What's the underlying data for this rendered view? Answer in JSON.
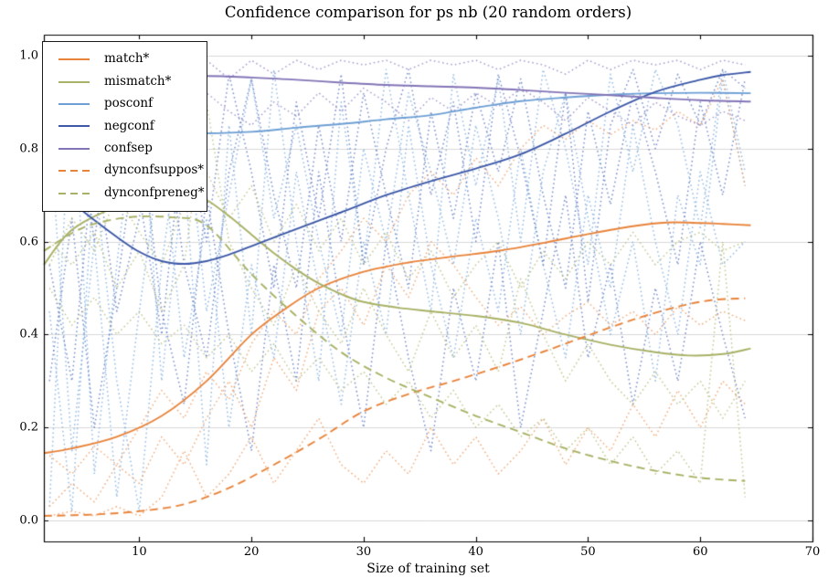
{
  "chart_data": {
    "type": "line",
    "title": "Confidence comparison for ps nb (20 random orders)",
    "xlabel": "Size of training set",
    "ylabel": "",
    "xlim": [
      1.5,
      70
    ],
    "ylim": [
      -0.045,
      1.045
    ],
    "xticks": [
      10,
      20,
      30,
      40,
      50,
      60,
      70
    ],
    "xticklabels": [
      "10",
      "20",
      "30",
      "40",
      "50",
      "60",
      "70"
    ],
    "yticks": [
      0.0,
      0.2,
      0.4,
      0.6,
      0.8,
      1.0
    ],
    "yticklabels": [
      "0.0",
      "0.2",
      "0.4",
      "0.6",
      "0.8",
      "1.0"
    ],
    "grid": "horizontal-only",
    "legend_position": "upper-left",
    "colors": {
      "orange": "#e8833a",
      "olive": "#a8b165",
      "lightblue": "#6d9fd4",
      "darkblue": "#3c58a7",
      "purple": "#8374b6",
      "run_lightblue": "#7cabdc",
      "run_darkblue": "#5b74bd",
      "run_orange": "#ec9a60",
      "run_olive": "#b3bc79",
      "run_purple": "#9385c2",
      "grid": "#d9d9d9",
      "spine": "#000000"
    },
    "series": [
      {
        "label": "match*",
        "color": "orange",
        "style": "solid",
        "points": [
          [
            1.5,
            0.145
          ],
          [
            4,
            0.155
          ],
          [
            8,
            0.18
          ],
          [
            12,
            0.225
          ],
          [
            16,
            0.3
          ],
          [
            20,
            0.4
          ],
          [
            23,
            0.455
          ],
          [
            26,
            0.5
          ],
          [
            30,
            0.535
          ],
          [
            34,
            0.555
          ],
          [
            38,
            0.568
          ],
          [
            42,
            0.58
          ],
          [
            46,
            0.597
          ],
          [
            50,
            0.616
          ],
          [
            54,
            0.633
          ],
          [
            57,
            0.641
          ],
          [
            60,
            0.64
          ],
          [
            62,
            0.638
          ],
          [
            64.5,
            0.635
          ]
        ]
      },
      {
        "label": "mismatch*",
        "color": "olive",
        "style": "solid",
        "points": [
          [
            1.5,
            0.55
          ],
          [
            4,
            0.625
          ],
          [
            8,
            0.675
          ],
          [
            12,
            0.7
          ],
          [
            15,
            0.7
          ],
          [
            16,
            0.69
          ],
          [
            18,
            0.655
          ],
          [
            20,
            0.615
          ],
          [
            22,
            0.575
          ],
          [
            24,
            0.54
          ],
          [
            26,
            0.51
          ],
          [
            28,
            0.487
          ],
          [
            30,
            0.47
          ],
          [
            33,
            0.458
          ],
          [
            36,
            0.45
          ],
          [
            40,
            0.44
          ],
          [
            44,
            0.425
          ],
          [
            48,
            0.4
          ],
          [
            52,
            0.378
          ],
          [
            56,
            0.362
          ],
          [
            59,
            0.355
          ],
          [
            62,
            0.358
          ],
          [
            64.5,
            0.37
          ]
        ]
      },
      {
        "label": "posconf",
        "color": "lightblue",
        "style": "solid",
        "points": [
          [
            1.5,
            0.843
          ],
          [
            4,
            0.838
          ],
          [
            8,
            0.836
          ],
          [
            12,
            0.835
          ],
          [
            16,
            0.833
          ],
          [
            20,
            0.836
          ],
          [
            24,
            0.845
          ],
          [
            28,
            0.853
          ],
          [
            32,
            0.863
          ],
          [
            36,
            0.872
          ],
          [
            40,
            0.888
          ],
          [
            44,
            0.902
          ],
          [
            48,
            0.91
          ],
          [
            52,
            0.916
          ],
          [
            56,
            0.919
          ],
          [
            60,
            0.92
          ],
          [
            64.5,
            0.919
          ]
        ]
      },
      {
        "label": "negconf",
        "color": "darkblue",
        "style": "solid",
        "points": [
          [
            1.5,
            0.75
          ],
          [
            3,
            0.705
          ],
          [
            5,
            0.665
          ],
          [
            8,
            0.61
          ],
          [
            10,
            0.578
          ],
          [
            12,
            0.558
          ],
          [
            14,
            0.552
          ],
          [
            16,
            0.558
          ],
          [
            18,
            0.572
          ],
          [
            20,
            0.59
          ],
          [
            24,
            0.627
          ],
          [
            28,
            0.663
          ],
          [
            32,
            0.7
          ],
          [
            36,
            0.73
          ],
          [
            40,
            0.757
          ],
          [
            44,
            0.788
          ],
          [
            48,
            0.832
          ],
          [
            52,
            0.88
          ],
          [
            56,
            0.922
          ],
          [
            60,
            0.948
          ],
          [
            62,
            0.958
          ],
          [
            64.5,
            0.965
          ]
        ]
      },
      {
        "label": "confsep",
        "color": "purple",
        "style": "solid",
        "points": [
          [
            1.5,
            0.845
          ],
          [
            4,
            0.9
          ],
          [
            8,
            0.94
          ],
          [
            12,
            0.953
          ],
          [
            16,
            0.956
          ],
          [
            20,
            0.953
          ],
          [
            24,
            0.948
          ],
          [
            28,
            0.942
          ],
          [
            32,
            0.937
          ],
          [
            36,
            0.934
          ],
          [
            40,
            0.931
          ],
          [
            44,
            0.926
          ],
          [
            48,
            0.92
          ],
          [
            52,
            0.915
          ],
          [
            56,
            0.909
          ],
          [
            60,
            0.904
          ],
          [
            64.5,
            0.901
          ]
        ]
      },
      {
        "label": "dynconfsuppos*",
        "color": "orange",
        "style": "dashed",
        "points": [
          [
            1.5,
            0.01
          ],
          [
            6,
            0.013
          ],
          [
            10,
            0.02
          ],
          [
            14,
            0.035
          ],
          [
            18,
            0.07
          ],
          [
            22,
            0.12
          ],
          [
            26,
            0.175
          ],
          [
            30,
            0.235
          ],
          [
            34,
            0.272
          ],
          [
            38,
            0.3
          ],
          [
            42,
            0.33
          ],
          [
            46,
            0.363
          ],
          [
            50,
            0.398
          ],
          [
            54,
            0.432
          ],
          [
            58,
            0.46
          ],
          [
            61,
            0.474
          ],
          [
            64,
            0.478
          ]
        ]
      },
      {
        "label": "dynconfpreneg*",
        "color": "olive",
        "style": "dashed",
        "points": [
          [
            1.5,
            0.58
          ],
          [
            5,
            0.63
          ],
          [
            9,
            0.652
          ],
          [
            13,
            0.652
          ],
          [
            16,
            0.635
          ],
          [
            20,
            0.53
          ],
          [
            24,
            0.44
          ],
          [
            28,
            0.362
          ],
          [
            32,
            0.307
          ],
          [
            36,
            0.265
          ],
          [
            40,
            0.225
          ],
          [
            44,
            0.19
          ],
          [
            48,
            0.155
          ],
          [
            52,
            0.128
          ],
          [
            56,
            0.107
          ],
          [
            60,
            0.092
          ],
          [
            64,
            0.085
          ]
        ]
      }
    ],
    "runs_note": "dotted lines = 20 individual random-order runs (approximated)",
    "runs_x_start": 2,
    "runs_x_step": 2,
    "runs": [
      {
        "color": "run_lightblue",
        "values": [
          0.03,
          0.97,
          0.1,
          0.55,
          0.96,
          0.3,
          0.75,
          0.12,
          0.85,
          0.4,
          0.97,
          0.6,
          0.3,
          0.9,
          0.55,
          0.97,
          0.7,
          0.45,
          0.96,
          0.72,
          0.95,
          0.6,
          0.97,
          0.8,
          0.55,
          0.96,
          0.75,
          0.97,
          0.85,
          0.63,
          0.97,
          0.75
        ]
      },
      {
        "color": "run_lightblue",
        "values": [
          0.85,
          0.15,
          0.6,
          0.05,
          0.45,
          0.8,
          0.35,
          0.65,
          0.2,
          0.55,
          0.35,
          0.75,
          0.5,
          0.25,
          0.6,
          0.4,
          0.85,
          0.55,
          0.35,
          0.65,
          0.45,
          0.8,
          0.55,
          0.35,
          0.7,
          0.5,
          0.85,
          0.6,
          0.4,
          0.75,
          0.55,
          0.6
        ]
      },
      {
        "color": "run_lightblue",
        "values": [
          0.45,
          0.02,
          0.75,
          0.3,
          0.02,
          0.55,
          0.9,
          0.45,
          0.7,
          0.95,
          0.65,
          0.85,
          0.6,
          0.4,
          0.8,
          0.6,
          0.92,
          0.75,
          0.55,
          0.85,
          0.65,
          0.4,
          0.75,
          0.92,
          0.65,
          0.4,
          0.6,
          0.3,
          0.7,
          0.55,
          0.95,
          0.72
        ]
      },
      {
        "color": "run_darkblue",
        "values": [
          0.75,
          0.95,
          0.6,
          0.97,
          0.7,
          0.4,
          0.85,
          0.6,
          0.96,
          0.75,
          0.5,
          0.9,
          0.65,
          0.96,
          0.55,
          0.8,
          0.97,
          0.7,
          0.9,
          0.6,
          0.96,
          0.78,
          0.55,
          0.92,
          0.47,
          0.85,
          0.97,
          0.8,
          0.96,
          0.85,
          0.97,
          0.93
        ]
      },
      {
        "color": "run_darkblue",
        "values": [
          0.3,
          0.65,
          0.2,
          0.5,
          0.85,
          0.45,
          0.25,
          0.7,
          0.4,
          0.15,
          0.55,
          0.3,
          0.75,
          0.45,
          0.2,
          0.6,
          0.35,
          0.15,
          0.5,
          0.3,
          0.6,
          0.2,
          0.45,
          0.7,
          0.35,
          0.55,
          0.25,
          0.5,
          0.3,
          0.6,
          0.4,
          0.22
        ]
      },
      {
        "color": "run_darkblue",
        "values": [
          0.55,
          0.3,
          0.8,
          0.45,
          0.65,
          0.9,
          0.55,
          0.35,
          0.75,
          0.95,
          0.7,
          0.5,
          0.85,
          0.6,
          0.92,
          0.7,
          0.5,
          0.88,
          0.65,
          0.92,
          0.75,
          0.95,
          0.7,
          0.5,
          0.88,
          0.68,
          0.92,
          0.75,
          0.55,
          0.9,
          0.7,
          0.95
        ]
      },
      {
        "color": "run_orange",
        "values": [
          0.01,
          0.02,
          0.01,
          0.03,
          0.01,
          0.05,
          0.15,
          0.05,
          0.1,
          0.18,
          0.08,
          0.15,
          0.22,
          0.12,
          0.08,
          0.15,
          0.1,
          0.2,
          0.12,
          0.18,
          0.1,
          0.15,
          0.22,
          0.12,
          0.2,
          0.15,
          0.25,
          0.18,
          0.28,
          0.2,
          0.3,
          0.25
        ]
      },
      {
        "color": "run_orange",
        "values": [
          0.03,
          0.08,
          0.04,
          0.12,
          0.08,
          0.18,
          0.12,
          0.22,
          0.3,
          0.2,
          0.35,
          0.28,
          0.45,
          0.5,
          0.42,
          0.55,
          0.48,
          0.6,
          0.55,
          0.48,
          0.42,
          0.46,
          0.4,
          0.44,
          0.47,
          0.42,
          0.45,
          0.4,
          0.46,
          0.42,
          0.45,
          0.43
        ]
      },
      {
        "color": "run_orange",
        "values": [
          0.14,
          0.1,
          0.16,
          0.12,
          0.2,
          0.28,
          0.22,
          0.32,
          0.26,
          0.38,
          0.45,
          0.4,
          0.52,
          0.58,
          0.65,
          0.6,
          0.7,
          0.75,
          0.7,
          0.78,
          0.72,
          0.8,
          0.85,
          0.82,
          0.86,
          0.83,
          0.86,
          0.84,
          0.88,
          0.85,
          0.95,
          0.72
        ]
      },
      {
        "color": "run_olive",
        "values": [
          0.6,
          0.55,
          0.62,
          0.5,
          0.58,
          0.45,
          0.55,
          0.9,
          0.6,
          0.5,
          0.42,
          0.55,
          0.45,
          0.38,
          0.5,
          0.4,
          0.32,
          0.45,
          0.35,
          0.42,
          0.32,
          0.52,
          0.4,
          0.3,
          0.38,
          0.3,
          0.25,
          0.32,
          0.25,
          0.3,
          0.22,
          0.3
        ]
      },
      {
        "color": "run_olive",
        "values": [
          0.55,
          0.65,
          0.58,
          0.7,
          0.62,
          0.55,
          0.68,
          0.75,
          0.65,
          0.72,
          0.6,
          0.68,
          0.58,
          0.65,
          0.55,
          0.62,
          0.52,
          0.58,
          0.48,
          0.55,
          0.6,
          0.5,
          0.58,
          0.52,
          0.6,
          0.55,
          0.62,
          0.55,
          0.6,
          0.62,
          0.58,
          0.6
        ]
      },
      {
        "color": "run_olive",
        "values": [
          0.5,
          0.42,
          0.48,
          0.4,
          0.45,
          0.38,
          0.42,
          0.35,
          0.4,
          0.32,
          0.38,
          0.3,
          0.35,
          0.28,
          0.32,
          0.25,
          0.3,
          0.22,
          0.28,
          0.2,
          0.25,
          0.18,
          0.22,
          0.15,
          0.2,
          0.12,
          0.18,
          0.1,
          0.15,
          0.08,
          0.6,
          0.05
        ]
      },
      {
        "color": "run_purple",
        "values": [
          0.88,
          0.95,
          0.9,
          0.97,
          0.92,
          0.98,
          0.94,
          0.99,
          0.95,
          0.99,
          0.96,
          0.99,
          0.97,
          0.99,
          0.98,
          0.99,
          0.97,
          0.99,
          0.98,
          0.99,
          0.97,
          0.99,
          0.98,
          0.96,
          0.99,
          0.97,
          0.99,
          0.98,
          0.99,
          0.97,
          0.99,
          0.98
        ]
      },
      {
        "color": "run_purple",
        "values": [
          0.8,
          0.86,
          0.82,
          0.88,
          0.84,
          0.9,
          0.86,
          0.92,
          0.88,
          0.85,
          0.9,
          0.87,
          0.92,
          0.88,
          0.93,
          0.9,
          0.86,
          0.91,
          0.88,
          0.92,
          0.89,
          0.93,
          0.9,
          0.86,
          0.91,
          0.88,
          0.85,
          0.9,
          0.87,
          0.85,
          0.88,
          0.86
        ]
      }
    ]
  }
}
